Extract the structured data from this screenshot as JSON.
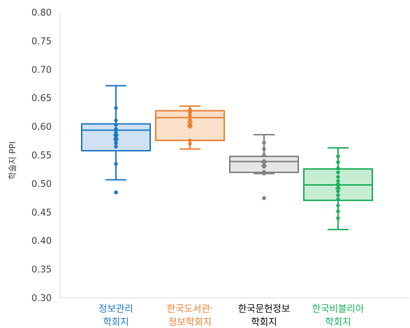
{
  "chart_data": {
    "type": "box",
    "title": "",
    "xlabel": "",
    "ylabel": "학술지 PPI",
    "ylim": [
      0.3,
      0.8
    ],
    "yticks": [
      "0.80",
      "0.75",
      "0.70",
      "0.65",
      "0.60",
      "0.55",
      "0.50",
      "0.45",
      "0.40",
      "0.35",
      "0.30"
    ],
    "grid": false,
    "legend": "none",
    "series": [
      {
        "label_lines": [
          "정보관리",
          "학회지"
        ],
        "color": "#1f77c4",
        "fill": "#cfe1f3",
        "min": 0.507,
        "q1": 0.558,
        "median": 0.594,
        "q3": 0.605,
        "max": 0.672,
        "mean": 0.582,
        "points": [
          0.633,
          0.611,
          0.603,
          0.596,
          0.59,
          0.586,
          0.583,
          0.58,
          0.576,
          0.571,
          0.565,
          0.535
        ],
        "outliers": [
          0.485
        ]
      },
      {
        "label_lines": [
          "한국도서관·",
          "정보학회지"
        ],
        "color": "#ee7d2d",
        "fill": "#fbe0cc",
        "min": 0.561,
        "q1": 0.576,
        "median": 0.616,
        "q3": 0.628,
        "max": 0.636,
        "mean": 0.605,
        "points": [
          0.63,
          0.625,
          0.62,
          0.612,
          0.605,
          0.6,
          0.576,
          0.57
        ],
        "outliers": []
      },
      {
        "label_lines": [
          "한국문헌정보",
          "학회지"
        ],
        "color": "#7f7f7f",
        "fill": "#e6e6e6",
        "min": 0.518,
        "q1": 0.52,
        "median": 0.539,
        "q3": 0.548,
        "max": 0.586,
        "mean": 0.535,
        "points": [
          0.572,
          0.561,
          0.55,
          0.54,
          0.53,
          0.521,
          0.518
        ],
        "outliers": [
          0.475
        ]
      },
      {
        "label_lines": [
          "한국비블리아",
          "학회지"
        ],
        "color": "#1aae5a",
        "fill": "#c6ecd2",
        "min": 0.42,
        "q1": 0.471,
        "median": 0.498,
        "q3": 0.526,
        "max": 0.563,
        "mean": 0.495,
        "points": [
          0.548,
          0.538,
          0.527,
          0.52,
          0.512,
          0.505,
          0.499,
          0.493,
          0.487,
          0.48,
          0.473,
          0.462,
          0.452,
          0.44
        ],
        "outliers": []
      }
    ]
  }
}
